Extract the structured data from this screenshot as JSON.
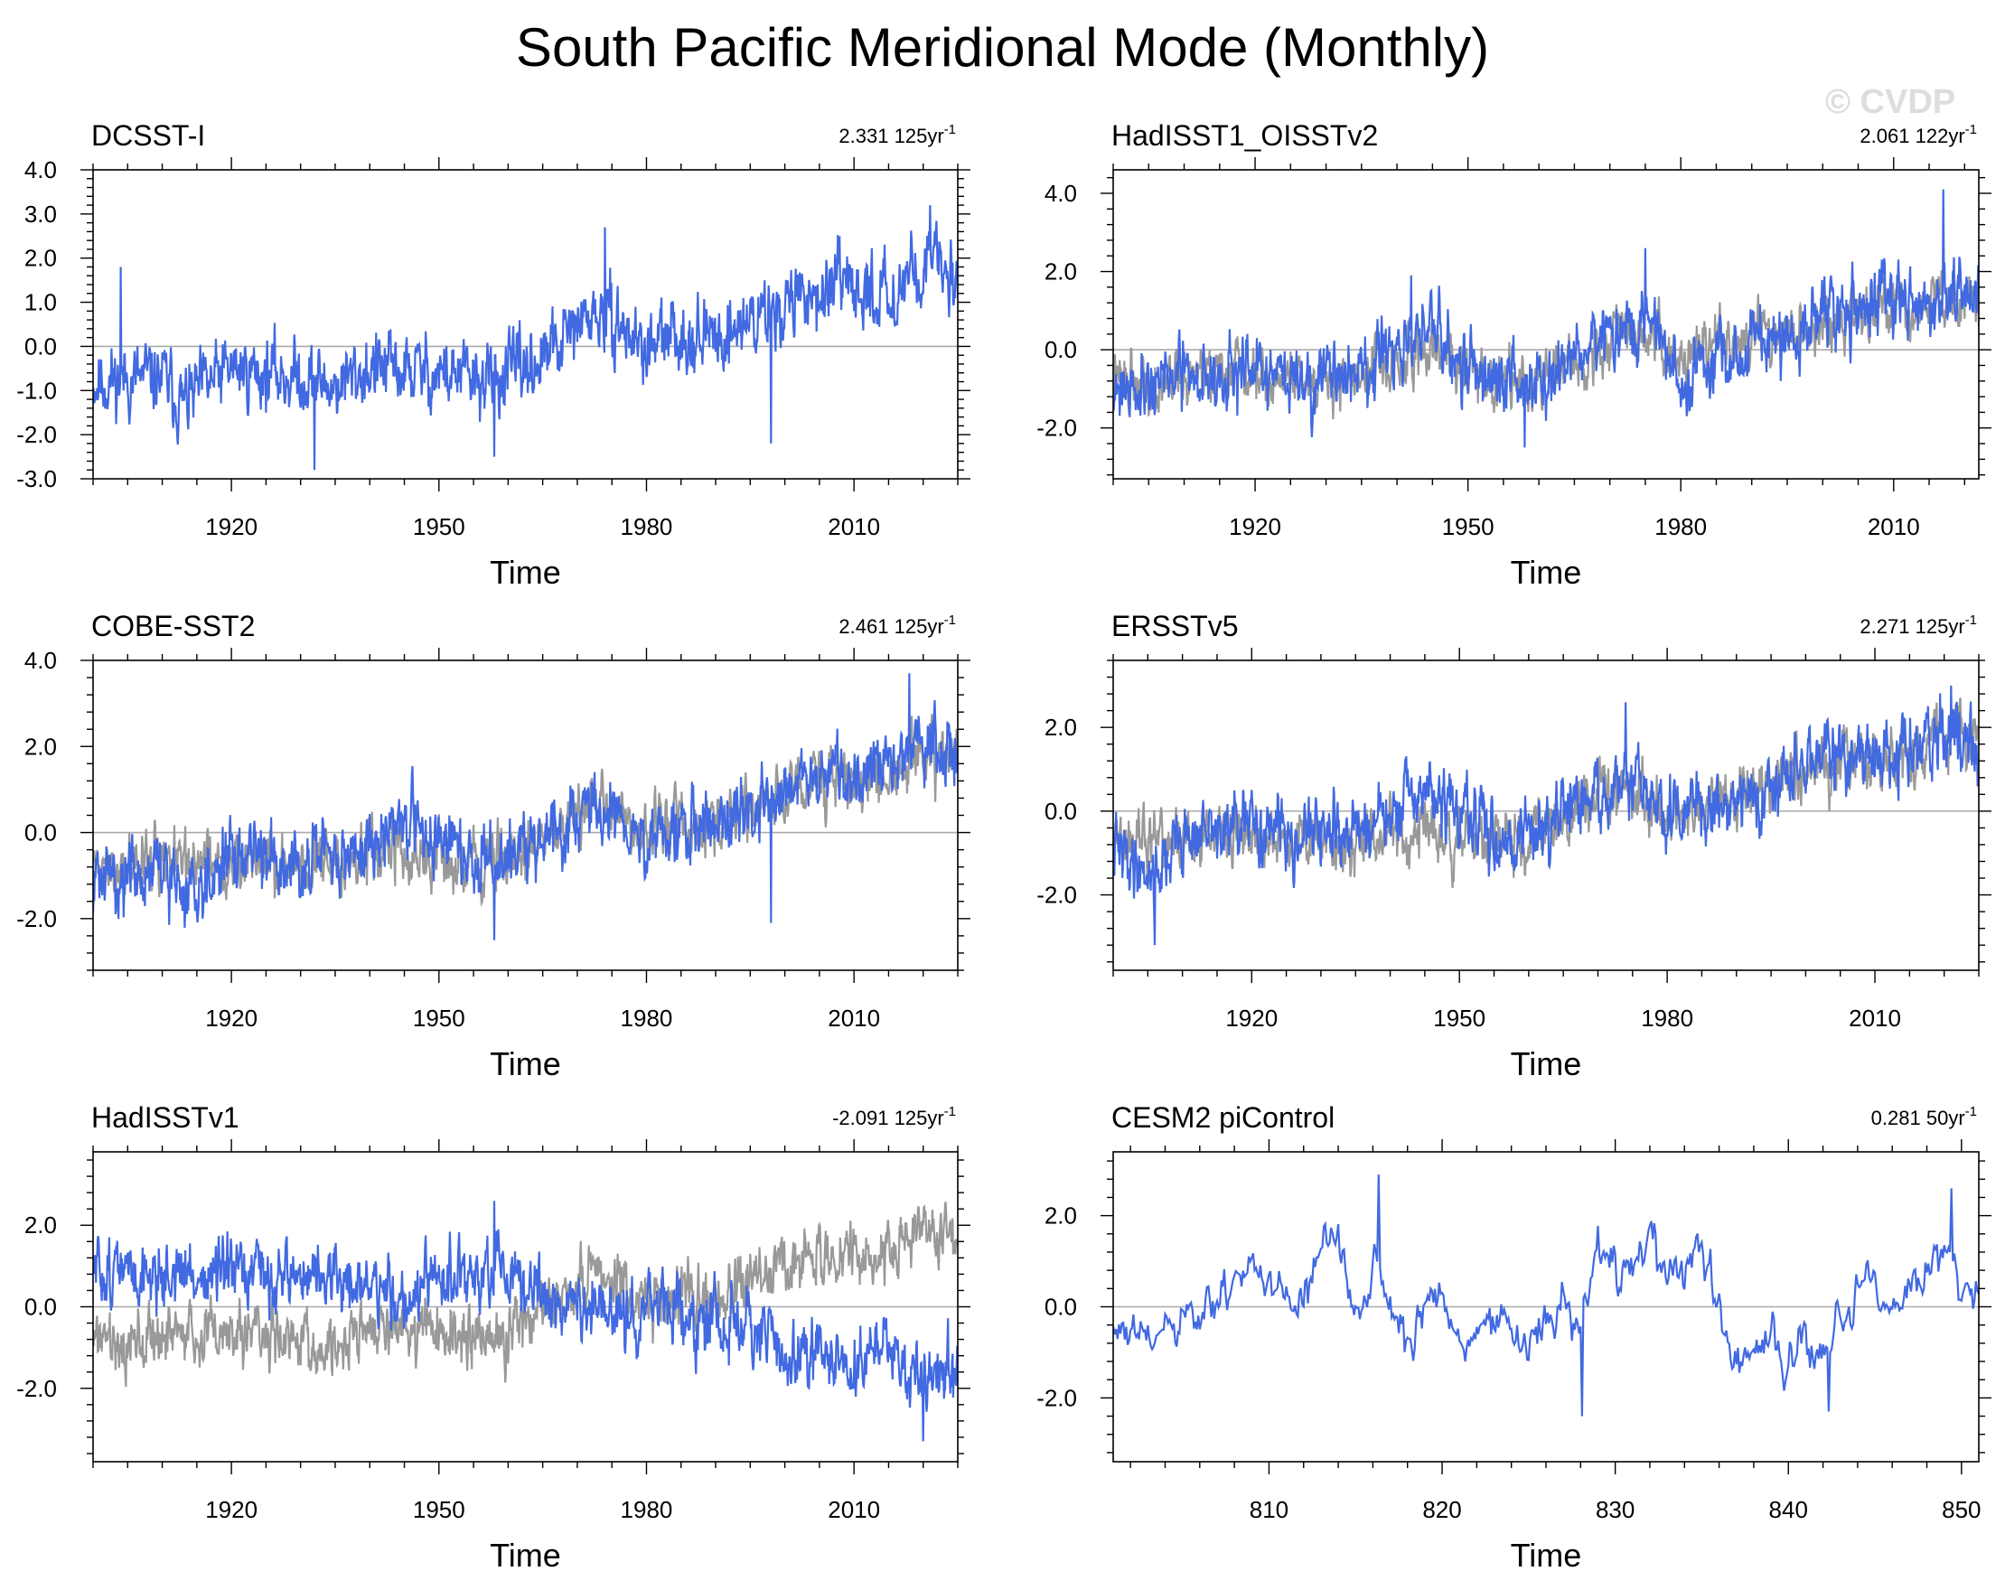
{
  "title": "South Pacific Meridional Mode (Monthly)",
  "watermark": "© CVDP",
  "colors": {
    "series": "#4169e1",
    "reference": "#999999",
    "zero_line": "#aaaaaa",
    "axis": "#000000"
  },
  "chart_data": [
    {
      "type": "line",
      "name": "DCSST-I",
      "trend_value": "2.331",
      "trend_period": "125yr",
      "trend_exp": "-1",
      "xlabel": "Time",
      "xlim": [
        1900,
        2025
      ],
      "xticks": [
        1920,
        1950,
        1980,
        2010
      ],
      "ylim": [
        -3.0,
        4.0
      ],
      "yticks": [
        -3.0,
        -2.0,
        -1.0,
        0.0,
        1.0,
        2.0,
        3.0,
        4.0
      ],
      "ytick_labels": [
        "-3.0",
        "-2.0",
        "-1.0",
        "0.0",
        "1.0",
        "2.0",
        "3.0",
        "4.0"
      ],
      "series_anchors": [
        [
          1900,
          -0.8
        ],
        [
          1910,
          -0.7
        ],
        [
          1913,
          -1.3
        ],
        [
          1920,
          -0.5
        ],
        [
          1930,
          -0.7
        ],
        [
          1935,
          -0.9
        ],
        [
          1940,
          -0.5
        ],
        [
          1950,
          -0.6
        ],
        [
          1957,
          -0.8
        ],
        [
          1965,
          -0.3
        ],
        [
          1972,
          0.7
        ],
        [
          1976,
          0.5
        ],
        [
          1980,
          -0.1
        ],
        [
          1985,
          0.3
        ],
        [
          1990,
          0.2
        ],
        [
          1995,
          0.6
        ],
        [
          2000,
          0.9
        ],
        [
          2005,
          1.3
        ],
        [
          2010,
          1.2
        ],
        [
          2015,
          1.2
        ],
        [
          2020,
          1.9
        ],
        [
          2025,
          1.6
        ]
      ],
      "series_noise": 0.55,
      "series_seed": 11,
      "series_events": [
        [
          1904,
          1.8
        ],
        [
          1932,
          -2.8
        ],
        [
          1958,
          -2.5
        ],
        [
          1974,
          2.7
        ],
        [
          1998,
          -2.2
        ],
        [
          2021,
          3.2
        ]
      ],
      "reference_anchors": null
    },
    {
      "type": "line",
      "name": "HadISST1_OISSTv2",
      "trend_value": "2.061",
      "trend_period": "122yr",
      "trend_exp": "-1",
      "xlabel": "Time",
      "xlim": [
        1900,
        2022
      ],
      "xticks": [
        1920,
        1950,
        1980,
        2010
      ],
      "ylim": [
        -3.3,
        4.6
      ],
      "yticks": [
        -2.0,
        0.0,
        2.0,
        4.0
      ],
      "ytick_labels": [
        "-2.0",
        "0.0",
        "2.0",
        "4.0"
      ],
      "series_anchors": [
        [
          1900,
          -0.9
        ],
        [
          1910,
          -0.7
        ],
        [
          1920,
          -0.6
        ],
        [
          1930,
          -0.8
        ],
        [
          1940,
          -0.2
        ],
        [
          1945,
          0.6
        ],
        [
          1950,
          -0.4
        ],
        [
          1957,
          -1.0
        ],
        [
          1965,
          -0.3
        ],
        [
          1972,
          0.5
        ],
        [
          1976,
          0.6
        ],
        [
          1980,
          -1.0
        ],
        [
          1985,
          -0.2
        ],
        [
          1990,
          0.2
        ],
        [
          1995,
          -0.2
        ],
        [
          2000,
          1.2
        ],
        [
          2005,
          1.0
        ],
        [
          2010,
          1.2
        ],
        [
          2015,
          1.0
        ],
        [
          2020,
          1.6
        ],
        [
          2022,
          1.3
        ]
      ],
      "series_noise": 0.6,
      "series_seed": 21,
      "series_events": [
        [
          1942,
          1.9
        ],
        [
          1958,
          -2.5
        ],
        [
          1975,
          2.6
        ],
        [
          2017,
          4.1
        ]
      ],
      "reference_anchors": [
        [
          1900,
          -0.8
        ],
        [
          1910,
          -0.7
        ],
        [
          1920,
          -0.6
        ],
        [
          1930,
          -0.8
        ],
        [
          1940,
          -0.4
        ],
        [
          1945,
          0.2
        ],
        [
          1950,
          -0.5
        ],
        [
          1957,
          -0.9
        ],
        [
          1965,
          -0.3
        ],
        [
          1972,
          0.4
        ],
        [
          1976,
          0.5
        ],
        [
          1980,
          -0.2
        ],
        [
          1985,
          0.2
        ],
        [
          1990,
          0.2
        ],
        [
          1995,
          0.4
        ],
        [
          2000,
          0.8
        ],
        [
          2005,
          1.0
        ],
        [
          2010,
          1.1
        ],
        [
          2015,
          1.2
        ],
        [
          2020,
          1.5
        ],
        [
          2022,
          1.3
        ]
      ],
      "reference_noise": 0.5,
      "reference_seed": 22
    },
    {
      "type": "line",
      "name": "COBE-SST2",
      "trend_value": "2.461",
      "trend_period": "125yr",
      "trend_exp": "-1",
      "xlabel": "Time",
      "xlim": [
        1900,
        2025
      ],
      "xticks": [
        1920,
        1950,
        1980,
        2010
      ],
      "ylim": [
        -3.2,
        4.0
      ],
      "yticks": [
        -2.0,
        0.0,
        2.0,
        4.0
      ],
      "ytick_labels": [
        "-2.0",
        "0.0",
        "2.0",
        "4.0"
      ],
      "series_anchors": [
        [
          1900,
          -1.1
        ],
        [
          1910,
          -0.9
        ],
        [
          1913,
          -1.4
        ],
        [
          1920,
          -0.5
        ],
        [
          1930,
          -0.6
        ],
        [
          1935,
          -0.7
        ],
        [
          1940,
          -0.3
        ],
        [
          1945,
          0.4
        ],
        [
          1950,
          -0.2
        ],
        [
          1957,
          -0.8
        ],
        [
          1965,
          -0.2
        ],
        [
          1972,
          0.5
        ],
        [
          1976,
          0.4
        ],
        [
          1980,
          -0.3
        ],
        [
          1985,
          0.1
        ],
        [
          1990,
          0.2
        ],
        [
          1995,
          0.5
        ],
        [
          2000,
          1.0
        ],
        [
          2005,
          1.4
        ],
        [
          2010,
          1.3
        ],
        [
          2015,
          1.5
        ],
        [
          2020,
          2.0
        ],
        [
          2025,
          1.8
        ]
      ],
      "series_noise": 0.55,
      "series_seed": 31,
      "series_events": [
        [
          1958,
          -2.5
        ],
        [
          1998,
          -2.1
        ],
        [
          2018,
          3.7
        ]
      ],
      "reference_anchors": [
        [
          1900,
          -0.8
        ],
        [
          1910,
          -0.7
        ],
        [
          1920,
          -0.6
        ],
        [
          1930,
          -0.8
        ],
        [
          1935,
          -0.9
        ],
        [
          1940,
          -0.5
        ],
        [
          1950,
          -0.6
        ],
        [
          1957,
          -0.8
        ],
        [
          1965,
          -0.3
        ],
        [
          1972,
          0.7
        ],
        [
          1976,
          0.5
        ],
        [
          1980,
          -0.1
        ],
        [
          1985,
          0.3
        ],
        [
          1990,
          0.2
        ],
        [
          1995,
          0.6
        ],
        [
          2000,
          0.9
        ],
        [
          2005,
          1.3
        ],
        [
          2010,
          1.2
        ],
        [
          2015,
          1.2
        ],
        [
          2020,
          1.9
        ],
        [
          2025,
          1.6
        ]
      ],
      "reference_noise": 0.5,
      "reference_seed": 32
    },
    {
      "type": "line",
      "name": "ERSSTv5",
      "trend_value": "2.271",
      "trend_period": "125yr",
      "trend_exp": "-1",
      "xlabel": "Time",
      "xlim": [
        1900,
        2025
      ],
      "xticks": [
        1920,
        1950,
        1980,
        2010
      ],
      "ylim": [
        -3.8,
        3.6
      ],
      "yticks": [
        -2.0,
        0.0,
        2.0
      ],
      "ytick_labels": [
        "-2.0",
        "0.0",
        "2.0"
      ],
      "series_anchors": [
        [
          1900,
          -0.9
        ],
        [
          1906,
          -1.5
        ],
        [
          1910,
          -0.6
        ],
        [
          1920,
          -0.4
        ],
        [
          1930,
          -0.6
        ],
        [
          1940,
          -0.2
        ],
        [
          1945,
          0.5
        ],
        [
          1950,
          -0.1
        ],
        [
          1957,
          -0.7
        ],
        [
          1965,
          -0.1
        ],
        [
          1972,
          0.5
        ],
        [
          1976,
          0.6
        ],
        [
          1980,
          -0.2
        ],
        [
          1985,
          0.2
        ],
        [
          1990,
          0.3
        ],
        [
          1995,
          0.5
        ],
        [
          2000,
          1.2
        ],
        [
          2005,
          1.3
        ],
        [
          2010,
          1.2
        ],
        [
          2015,
          1.5
        ],
        [
          2020,
          2.0
        ],
        [
          2025,
          1.4
        ]
      ],
      "series_noise": 0.55,
      "series_seed": 41,
      "series_events": [
        [
          1906,
          -3.2
        ],
        [
          1974,
          2.6
        ],
        [
          2021,
          3.0
        ]
      ],
      "reference_anchors": [
        [
          1900,
          -0.8
        ],
        [
          1910,
          -0.7
        ],
        [
          1920,
          -0.6
        ],
        [
          1930,
          -0.8
        ],
        [
          1935,
          -0.9
        ],
        [
          1940,
          -0.5
        ],
        [
          1950,
          -0.6
        ],
        [
          1957,
          -0.8
        ],
        [
          1965,
          -0.3
        ],
        [
          1972,
          0.7
        ],
        [
          1976,
          0.5
        ],
        [
          1980,
          -0.1
        ],
        [
          1985,
          0.3
        ],
        [
          1990,
          0.2
        ],
        [
          1995,
          0.6
        ],
        [
          2000,
          0.9
        ],
        [
          2005,
          1.3
        ],
        [
          2010,
          1.2
        ],
        [
          2015,
          1.2
        ],
        [
          2020,
          1.9
        ],
        [
          2025,
          1.6
        ]
      ],
      "reference_noise": 0.5,
      "reference_seed": 42
    },
    {
      "type": "line",
      "name": "HadISSTv1",
      "trend_value": "-2.091",
      "trend_period": "125yr",
      "trend_exp": "-1",
      "xlabel": "Time",
      "xlim": [
        1900,
        2025
      ],
      "xticks": [
        1920,
        1950,
        1980,
        2010
      ],
      "ylim": [
        -3.8,
        3.8
      ],
      "yticks": [
        -2.0,
        0.0,
        2.0
      ],
      "ytick_labels": [
        "-2.0",
        "0.0",
        "2.0"
      ],
      "series_anchors": [
        [
          1900,
          0.9
        ],
        [
          1910,
          0.8
        ],
        [
          1920,
          0.7
        ],
        [
          1930,
          0.8
        ],
        [
          1940,
          0.5
        ],
        [
          1945,
          0.2
        ],
        [
          1950,
          0.6
        ],
        [
          1957,
          0.8
        ],
        [
          1965,
          0.3
        ],
        [
          1972,
          -0.1
        ],
        [
          1976,
          -0.4
        ],
        [
          1980,
          0.1
        ],
        [
          1985,
          -0.2
        ],
        [
          1990,
          -0.3
        ],
        [
          1995,
          -0.6
        ],
        [
          2000,
          -1.1
        ],
        [
          2005,
          -1.2
        ],
        [
          2010,
          -1.3
        ],
        [
          2015,
          -1.2
        ],
        [
          2020,
          -1.7
        ],
        [
          2025,
          -1.5
        ]
      ],
      "series_noise": 0.55,
      "series_seed": 51,
      "series_events": [
        [
          1958,
          2.6
        ],
        [
          2020,
          -3.3
        ]
      ],
      "reference_anchors": [
        [
          1900,
          -0.8
        ],
        [
          1910,
          -0.7
        ],
        [
          1920,
          -0.6
        ],
        [
          1930,
          -0.8
        ],
        [
          1935,
          -0.9
        ],
        [
          1940,
          -0.5
        ],
        [
          1950,
          -0.6
        ],
        [
          1957,
          -0.8
        ],
        [
          1965,
          -0.3
        ],
        [
          1972,
          0.7
        ],
        [
          1976,
          0.5
        ],
        [
          1980,
          -0.1
        ],
        [
          1985,
          0.3
        ],
        [
          1990,
          0.2
        ],
        [
          1995,
          0.6
        ],
        [
          2000,
          0.9
        ],
        [
          2005,
          1.3
        ],
        [
          2010,
          1.2
        ],
        [
          2015,
          1.2
        ],
        [
          2020,
          1.9
        ],
        [
          2025,
          1.6
        ]
      ],
      "reference_noise": 0.5,
      "reference_seed": 52
    },
    {
      "type": "line",
      "name": "CESM2 piControl",
      "trend_value": "0.281",
      "trend_period": "50yr",
      "trend_exp": "-1",
      "xlabel": "Time",
      "xlim": [
        801,
        851
      ],
      "xticks": [
        810,
        820,
        830,
        840,
        850
      ],
      "ylim": [
        -3.4,
        3.4
      ],
      "yticks": [
        -2.0,
        0.0,
        2.0
      ],
      "ytick_labels": [
        "-2.0",
        "0.0",
        "2.0"
      ],
      "series_anchors": [
        [
          801,
          -0.5
        ],
        [
          803,
          -0.8
        ],
        [
          805,
          -0.4
        ],
        [
          806,
          -0.3
        ],
        [
          808,
          0.5
        ],
        [
          809,
          1.2
        ],
        [
          810,
          0.1
        ],
        [
          812,
          0.3
        ],
        [
          813,
          1.2
        ],
        [
          814,
          1.6
        ],
        [
          815,
          -0.5
        ],
        [
          816,
          1.0
        ],
        [
          817,
          0.3
        ],
        [
          818,
          -0.9
        ],
        [
          819,
          0.0
        ],
        [
          820,
          0.2
        ],
        [
          821,
          -0.9
        ],
        [
          823,
          -0.2
        ],
        [
          825,
          -0.9
        ],
        [
          827,
          0.3
        ],
        [
          828,
          -0.4
        ],
        [
          829,
          1.3
        ],
        [
          831,
          0.8
        ],
        [
          832,
          1.4
        ],
        [
          833,
          0.6
        ],
        [
          834,
          0.9
        ],
        [
          835,
          1.3
        ],
        [
          836,
          0.0
        ],
        [
          837,
          -1.4
        ],
        [
          838,
          -1.0
        ],
        [
          839,
          -0.7
        ],
        [
          840,
          -1.3
        ],
        [
          841,
          -1.1
        ],
        [
          842,
          -0.9
        ],
        [
          843,
          -0.4
        ],
        [
          844,
          0.2
        ],
        [
          845,
          0.6
        ],
        [
          846,
          -0.3
        ],
        [
          847,
          0.4
        ],
        [
          848,
          1.1
        ],
        [
          849,
          1.5
        ],
        [
          850,
          0.3
        ],
        [
          851,
          0.6
        ]
      ],
      "series_noise": 0.35,
      "series_seed": 61,
      "series_events": [
        [
          816.3,
          2.9
        ],
        [
          828.1,
          -2.4
        ],
        [
          842.3,
          -2.3
        ],
        [
          849.4,
          2.6
        ]
      ],
      "reference_anchors": null
    }
  ]
}
